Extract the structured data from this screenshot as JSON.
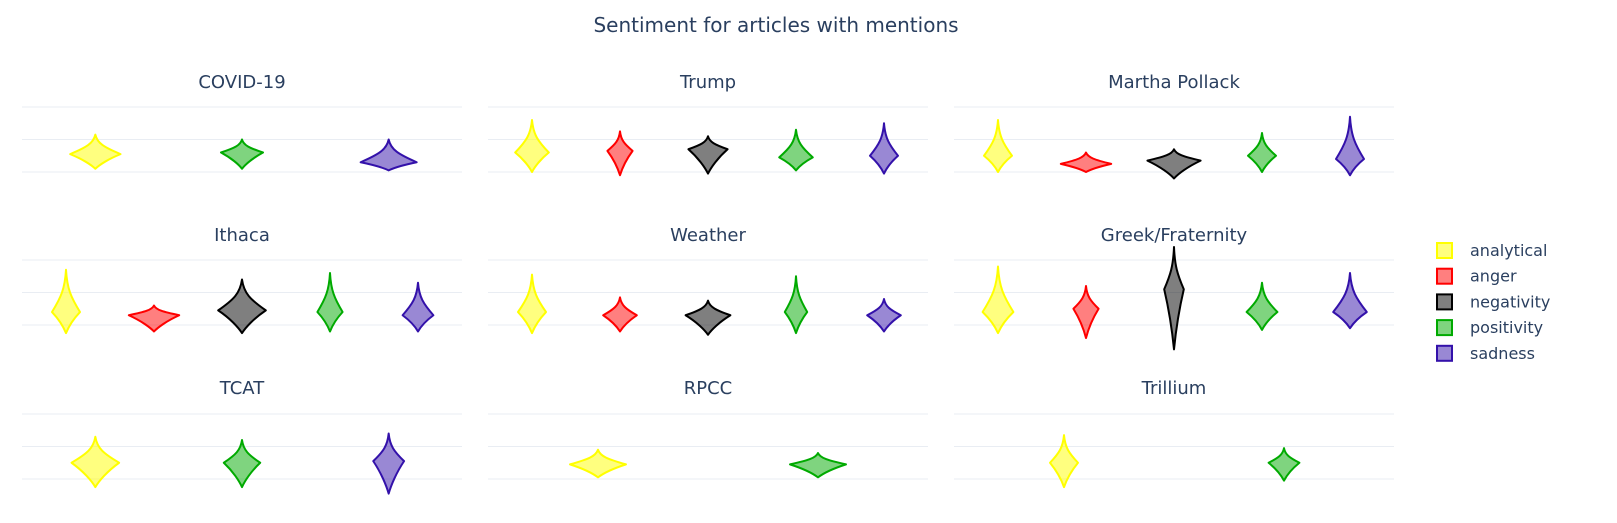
{
  "chart_data": {
    "type": "violin",
    "title": "Sentiment for articles with mentions",
    "legend": {
      "placement": "right",
      "items": [
        {
          "name": "analytical",
          "color": "#ffff00"
        },
        {
          "name": "anger",
          "color": "#ff0000"
        },
        {
          "name": "negativity",
          "color": "#000000"
        },
        {
          "name": "positivity",
          "color": "#00aa00"
        },
        {
          "name": "sadness",
          "color": "#3311aa"
        }
      ]
    },
    "grid": true,
    "panels": [
      {
        "title": "COVID-19",
        "categories": [
          "analytical",
          "positivity",
          "sadness"
        ],
        "violins": [
          {
            "series": "analytical",
            "center": 0.55,
            "min": 0.1,
            "max": 1.15,
            "width": 0.9
          },
          {
            "series": "positivity",
            "center": 0.6,
            "min": 0.1,
            "max": 1.0,
            "width": 0.75
          },
          {
            "series": "sadness",
            "center": 0.3,
            "min": 0.05,
            "max": 1.0,
            "width": 1.0
          }
        ]
      },
      {
        "title": "Trump",
        "categories": [
          "analytical",
          "anger",
          "negativity",
          "positivity",
          "sadness"
        ],
        "violins": [
          {
            "series": "analytical",
            "center": 0.6,
            "min": 0.0,
            "max": 1.6,
            "width": 0.6
          },
          {
            "series": "anger",
            "center": 0.65,
            "min": -0.1,
            "max": 1.25,
            "width": 0.45
          },
          {
            "series": "negativity",
            "center": 0.7,
            "min": -0.05,
            "max": 1.1,
            "width": 0.7
          },
          {
            "series": "positivity",
            "center": 0.45,
            "min": 0.05,
            "max": 1.3,
            "width": 0.6
          },
          {
            "series": "sadness",
            "center": 0.5,
            "min": -0.05,
            "max": 1.5,
            "width": 0.5
          }
        ]
      },
      {
        "title": "Martha Pollack",
        "categories": [
          "analytical",
          "anger",
          "negativity",
          "positivity",
          "sadness"
        ],
        "violins": [
          {
            "series": "analytical",
            "center": 0.5,
            "min": 0.0,
            "max": 1.6,
            "width": 0.5
          },
          {
            "series": "anger",
            "center": 0.25,
            "min": 0.0,
            "max": 0.6,
            "width": 0.9
          },
          {
            "series": "negativity",
            "center": 0.35,
            "min": -0.2,
            "max": 0.7,
            "width": 0.95
          },
          {
            "series": "positivity",
            "center": 0.5,
            "min": 0.0,
            "max": 1.2,
            "width": 0.5
          },
          {
            "series": "sadness",
            "center": 0.4,
            "min": -0.1,
            "max": 1.7,
            "width": 0.5
          }
        ]
      },
      {
        "title": "Ithaca",
        "categories": [
          "analytical",
          "anger",
          "negativity",
          "positivity",
          "sadness"
        ],
        "violins": [
          {
            "series": "analytical",
            "center": 0.4,
            "min": -0.25,
            "max": 1.7,
            "width": 0.5
          },
          {
            "series": "anger",
            "center": 0.3,
            "min": -0.2,
            "max": 0.6,
            "width": 0.9
          },
          {
            "series": "negativity",
            "center": 0.45,
            "min": -0.25,
            "max": 1.4,
            "width": 0.85
          },
          {
            "series": "positivity",
            "center": 0.4,
            "min": -0.2,
            "max": 1.6,
            "width": 0.45
          },
          {
            "series": "sadness",
            "center": 0.3,
            "min": -0.2,
            "max": 1.3,
            "width": 0.55
          }
        ]
      },
      {
        "title": "Weather",
        "categories": [
          "analytical",
          "anger",
          "negativity",
          "positivity",
          "sadness"
        ],
        "violins": [
          {
            "series": "analytical",
            "center": 0.4,
            "min": -0.25,
            "max": 1.55,
            "width": 0.5
          },
          {
            "series": "anger",
            "center": 0.3,
            "min": -0.2,
            "max": 0.85,
            "width": 0.6
          },
          {
            "series": "negativity",
            "center": 0.3,
            "min": -0.3,
            "max": 0.75,
            "width": 0.8
          },
          {
            "series": "positivity",
            "center": 0.4,
            "min": -0.25,
            "max": 1.5,
            "width": 0.4
          },
          {
            "series": "sadness",
            "center": 0.3,
            "min": -0.2,
            "max": 0.8,
            "width": 0.6
          }
        ]
      },
      {
        "title": "Greek/Fraternity",
        "categories": [
          "analytical",
          "anger",
          "negativity",
          "positivity",
          "sadness"
        ],
        "violins": [
          {
            "series": "analytical",
            "center": 0.4,
            "min": -0.25,
            "max": 1.8,
            "width": 0.55
          },
          {
            "series": "anger",
            "center": 0.5,
            "min": -0.4,
            "max": 1.2,
            "width": 0.45
          },
          {
            "series": "negativity",
            "center": 1.1,
            "min": -0.75,
            "max": 2.4,
            "width": 0.35
          },
          {
            "series": "positivity",
            "center": 0.4,
            "min": -0.15,
            "max": 1.3,
            "width": 0.55
          },
          {
            "series": "sadness",
            "center": 0.4,
            "min": -0.1,
            "max": 1.6,
            "width": 0.6
          }
        ]
      },
      {
        "title": "TCAT",
        "categories": [
          "analytical",
          "positivity",
          "sadness"
        ],
        "violins": [
          {
            "series": "analytical",
            "center": 0.5,
            "min": -0.25,
            "max": 1.3,
            "width": 0.85
          },
          {
            "series": "positivity",
            "center": 0.5,
            "min": -0.25,
            "max": 1.2,
            "width": 0.65
          },
          {
            "series": "sadness",
            "center": 0.55,
            "min": -0.45,
            "max": 1.4,
            "width": 0.55
          }
        ]
      },
      {
        "title": "RPCC",
        "categories": [
          "analytical",
          "positivity"
        ],
        "violins": [
          {
            "series": "analytical",
            "center": 0.45,
            "min": 0.05,
            "max": 0.9,
            "width": 1.0
          },
          {
            "series": "positivity",
            "center": 0.45,
            "min": 0.05,
            "max": 0.8,
            "width": 1.0
          }
        ]
      },
      {
        "title": "Trillium",
        "categories": [
          "analytical",
          "positivity"
        ],
        "violins": [
          {
            "series": "analytical",
            "center": 0.5,
            "min": -0.25,
            "max": 1.35,
            "width": 0.5
          },
          {
            "series": "positivity",
            "center": 0.5,
            "min": -0.05,
            "max": 0.95,
            "width": 0.55
          }
        ]
      }
    ]
  }
}
